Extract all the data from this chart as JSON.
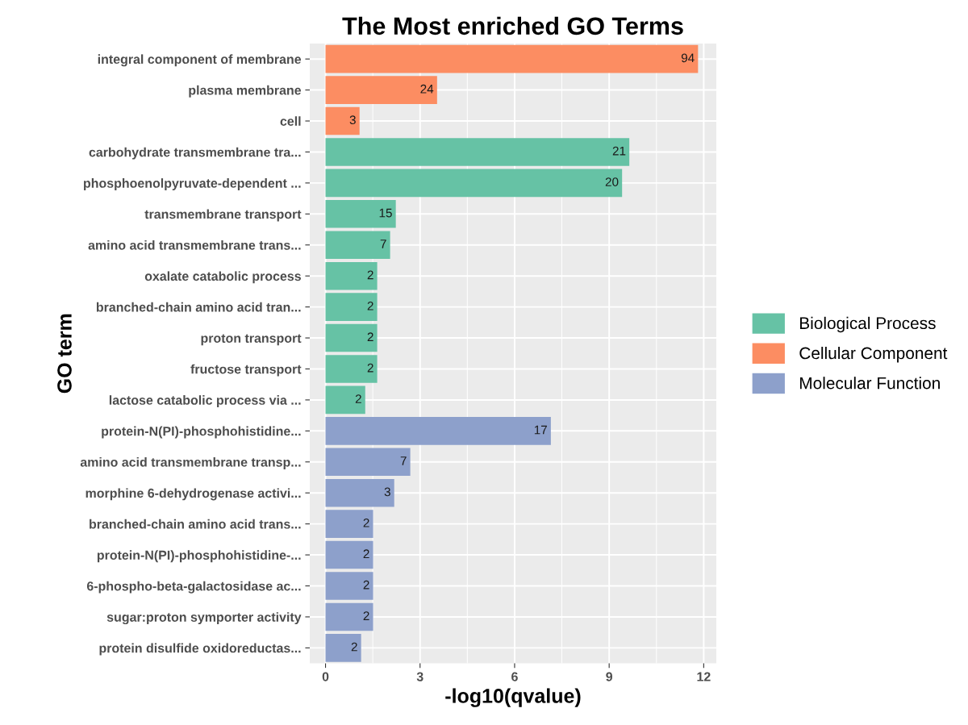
{
  "chart_data": {
    "type": "bar",
    "orientation": "horizontal",
    "title": "The Most enriched GO Terms",
    "xlabel": "-log10(qvalue)",
    "ylabel": "GO term",
    "categories": [
      "integral component of membrane",
      "plasma membrane",
      "cell",
      "carbohydrate transmembrane tra...",
      "phosphoenolpyruvate-dependent ...",
      "transmembrane transport",
      "amino acid transmembrane trans...",
      "oxalate catabolic process",
      "branched-chain amino acid tran...",
      "proton transport",
      "fructose transport",
      "lactose catabolic process via ...",
      "protein-N(PI)-phosphohistidine...",
      "amino acid transmembrane transp...",
      "morphine 6-dehydrogenase activi...",
      "branched-chain amino acid trans...",
      "protein-N(PI)-phosphohistidine-...",
      "6-phospho-beta-galactosidase ac...",
      "sugar:proton symporter activity",
      "protein disulfide oxidoreductas..."
    ],
    "series": [
      {
        "name": "Biological Process",
        "color": "#66c2a5",
        "values": [
          null,
          null,
          null,
          9.64,
          9.41,
          2.23,
          2.05,
          1.64,
          1.64,
          1.64,
          1.64,
          1.26,
          null,
          null,
          null,
          null,
          null,
          null,
          null,
          null
        ]
      },
      {
        "name": "Cellular Component",
        "color": "#fc8d62",
        "values": [
          11.82,
          3.54,
          1.08,
          null,
          null,
          null,
          null,
          null,
          null,
          null,
          null,
          null,
          null,
          null,
          null,
          null,
          null,
          null,
          null,
          null
        ]
      },
      {
        "name": "Molecular Function",
        "color": "#8da0cb",
        "values": [
          null,
          null,
          null,
          null,
          null,
          null,
          null,
          null,
          null,
          null,
          null,
          null,
          7.15,
          2.69,
          2.18,
          1.51,
          1.51,
          1.51,
          1.51,
          1.13
        ]
      }
    ],
    "annotations": [
      {
        "text": "94",
        "x": 11.82,
        "y": "integral component of membrane"
      },
      {
        "text": "24",
        "x": 3.54,
        "y": "plasma membrane"
      },
      {
        "text": "3",
        "x": 1.08,
        "y": "cell"
      },
      {
        "text": "21",
        "x": 9.64,
        "y": "carbohydrate transmembrane tra..."
      },
      {
        "text": "20",
        "x": 9.41,
        "y": "phosphoenolpyruvate-dependent ..."
      },
      {
        "text": "15",
        "x": 2.23,
        "y": "transmembrane transport"
      },
      {
        "text": "7",
        "x": 2.05,
        "y": "amino acid transmembrane trans..."
      },
      {
        "text": "2",
        "x": 1.64,
        "y": "oxalate catabolic process"
      },
      {
        "text": "2",
        "x": 1.64,
        "y": "branched-chain amino acid tran..."
      },
      {
        "text": "2",
        "x": 1.64,
        "y": "proton transport"
      },
      {
        "text": "2",
        "x": 1.64,
        "y": "fructose transport"
      },
      {
        "text": "2",
        "x": 1.26,
        "y": "lactose catabolic process via ..."
      },
      {
        "text": "17",
        "x": 7.15,
        "y": "protein-N(PI)-phosphohistidine..."
      },
      {
        "text": "7",
        "x": 2.69,
        "y": "amino acid transmembrane transp..."
      },
      {
        "text": "3",
        "x": 2.18,
        "y": "morphine 6-dehydrogenase activi..."
      },
      {
        "text": "2",
        "x": 1.51,
        "y": "branched-chain amino acid trans..."
      },
      {
        "text": "2",
        "x": 1.51,
        "y": "protein-N(PI)-phosphohistidine-..."
      },
      {
        "text": "2",
        "x": 1.51,
        "y": "6-phospho-beta-galactosidase ac..."
      },
      {
        "text": "2",
        "x": 1.51,
        "y": "sugar:proton symporter activity"
      },
      {
        "text": "2",
        "x": 1.13,
        "y": "protein disulfide oxidoreductas..."
      }
    ],
    "xlim": [
      -0.5,
      12.4
    ],
    "xticks": [
      0,
      3,
      6,
      9,
      12
    ],
    "grid": true,
    "legend": "right"
  }
}
